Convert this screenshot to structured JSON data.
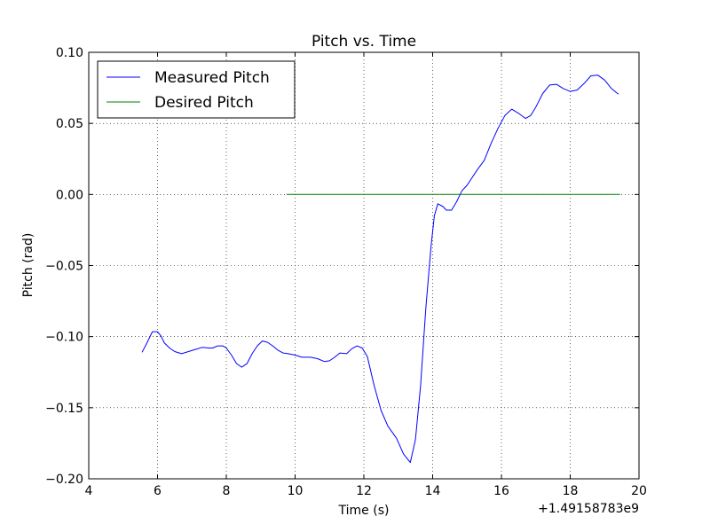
{
  "chart_data": {
    "type": "line",
    "title": "Pitch vs. Time",
    "xlabel": "Time (s)",
    "ylabel": "Pitch (rad)",
    "x_offset_label": "+1.49158783e9",
    "xlim": [
      4,
      20
    ],
    "ylim": [
      -0.2,
      0.1
    ],
    "x_ticks": [
      4,
      6,
      8,
      10,
      12,
      14,
      16,
      18,
      20
    ],
    "x_tick_labels": [
      "4",
      "6",
      "8",
      "10",
      "12",
      "14",
      "16",
      "18",
      "20"
    ],
    "y_ticks": [
      -0.2,
      -0.15,
      -0.1,
      -0.05,
      0.0,
      0.05,
      0.1
    ],
    "y_tick_labels": [
      "−0.20",
      "−0.15",
      "−0.10",
      "−0.05",
      "0.00",
      "0.05",
      "0.10"
    ],
    "grid": true,
    "legend_position": "top-left",
    "series": [
      {
        "name": "Measured Pitch",
        "color": "#0000ff",
        "points": [
          [
            5.55,
            -0.111
          ],
          [
            5.7,
            -0.104
          ],
          [
            5.85,
            -0.0965
          ],
          [
            6.0,
            -0.0965
          ],
          [
            6.1,
            -0.0995
          ],
          [
            6.2,
            -0.1045
          ],
          [
            6.35,
            -0.108
          ],
          [
            6.5,
            -0.1105
          ],
          [
            6.7,
            -0.112
          ],
          [
            6.9,
            -0.1105
          ],
          [
            7.1,
            -0.109
          ],
          [
            7.3,
            -0.1075
          ],
          [
            7.5,
            -0.108
          ],
          [
            7.6,
            -0.108
          ],
          [
            7.75,
            -0.1065
          ],
          [
            7.9,
            -0.1065
          ],
          [
            8.0,
            -0.108
          ],
          [
            8.15,
            -0.113
          ],
          [
            8.3,
            -0.119
          ],
          [
            8.45,
            -0.1215
          ],
          [
            8.6,
            -0.119
          ],
          [
            8.75,
            -0.112
          ],
          [
            8.9,
            -0.1065
          ],
          [
            9.05,
            -0.103
          ],
          [
            9.2,
            -0.104
          ],
          [
            9.35,
            -0.1065
          ],
          [
            9.5,
            -0.1095
          ],
          [
            9.65,
            -0.1115
          ],
          [
            9.8,
            -0.112
          ],
          [
            10.0,
            -0.113
          ],
          [
            10.2,
            -0.1145
          ],
          [
            10.45,
            -0.1145
          ],
          [
            10.65,
            -0.1155
          ],
          [
            10.85,
            -0.1175
          ],
          [
            11.0,
            -0.117
          ],
          [
            11.15,
            -0.1145
          ],
          [
            11.3,
            -0.1115
          ],
          [
            11.5,
            -0.112
          ],
          [
            11.65,
            -0.1085
          ],
          [
            11.8,
            -0.1065
          ],
          [
            11.95,
            -0.108
          ],
          [
            12.1,
            -0.114
          ],
          [
            12.3,
            -0.1345
          ],
          [
            12.5,
            -0.152
          ],
          [
            12.7,
            -0.163
          ],
          [
            12.95,
            -0.1715
          ],
          [
            13.15,
            -0.1825
          ],
          [
            13.35,
            -0.1885
          ],
          [
            13.5,
            -0.1725
          ],
          [
            13.65,
            -0.1345
          ],
          [
            13.8,
            -0.08
          ],
          [
            13.95,
            -0.037
          ],
          [
            14.05,
            -0.015
          ],
          [
            14.15,
            -0.0065
          ],
          [
            14.3,
            -0.0085
          ],
          [
            14.4,
            -0.011
          ],
          [
            14.55,
            -0.011
          ],
          [
            14.7,
            -0.005
          ],
          [
            14.85,
            0.0025
          ],
          [
            15.0,
            0.0065
          ],
          [
            15.15,
            0.012
          ],
          [
            15.3,
            0.0175
          ],
          [
            15.5,
            0.024
          ],
          [
            15.7,
            0.036
          ],
          [
            15.9,
            0.0465
          ],
          [
            16.1,
            0.0555
          ],
          [
            16.3,
            0.06
          ],
          [
            16.5,
            0.057
          ],
          [
            16.7,
            0.0535
          ],
          [
            16.85,
            0.0555
          ],
          [
            17.0,
            0.0615
          ],
          [
            17.2,
            0.071
          ],
          [
            17.4,
            0.077
          ],
          [
            17.6,
            0.0775
          ],
          [
            17.8,
            0.0745
          ],
          [
            18.0,
            0.0725
          ],
          [
            18.2,
            0.0735
          ],
          [
            18.4,
            0.078
          ],
          [
            18.6,
            0.0835
          ],
          [
            18.8,
            0.084
          ],
          [
            19.0,
            0.0805
          ],
          [
            19.2,
            0.0745
          ],
          [
            19.4,
            0.0705
          ]
        ]
      },
      {
        "name": "Desired Pitch",
        "color": "#008000",
        "points": [
          [
            9.75,
            0.0
          ],
          [
            19.45,
            0.0
          ]
        ]
      }
    ]
  }
}
